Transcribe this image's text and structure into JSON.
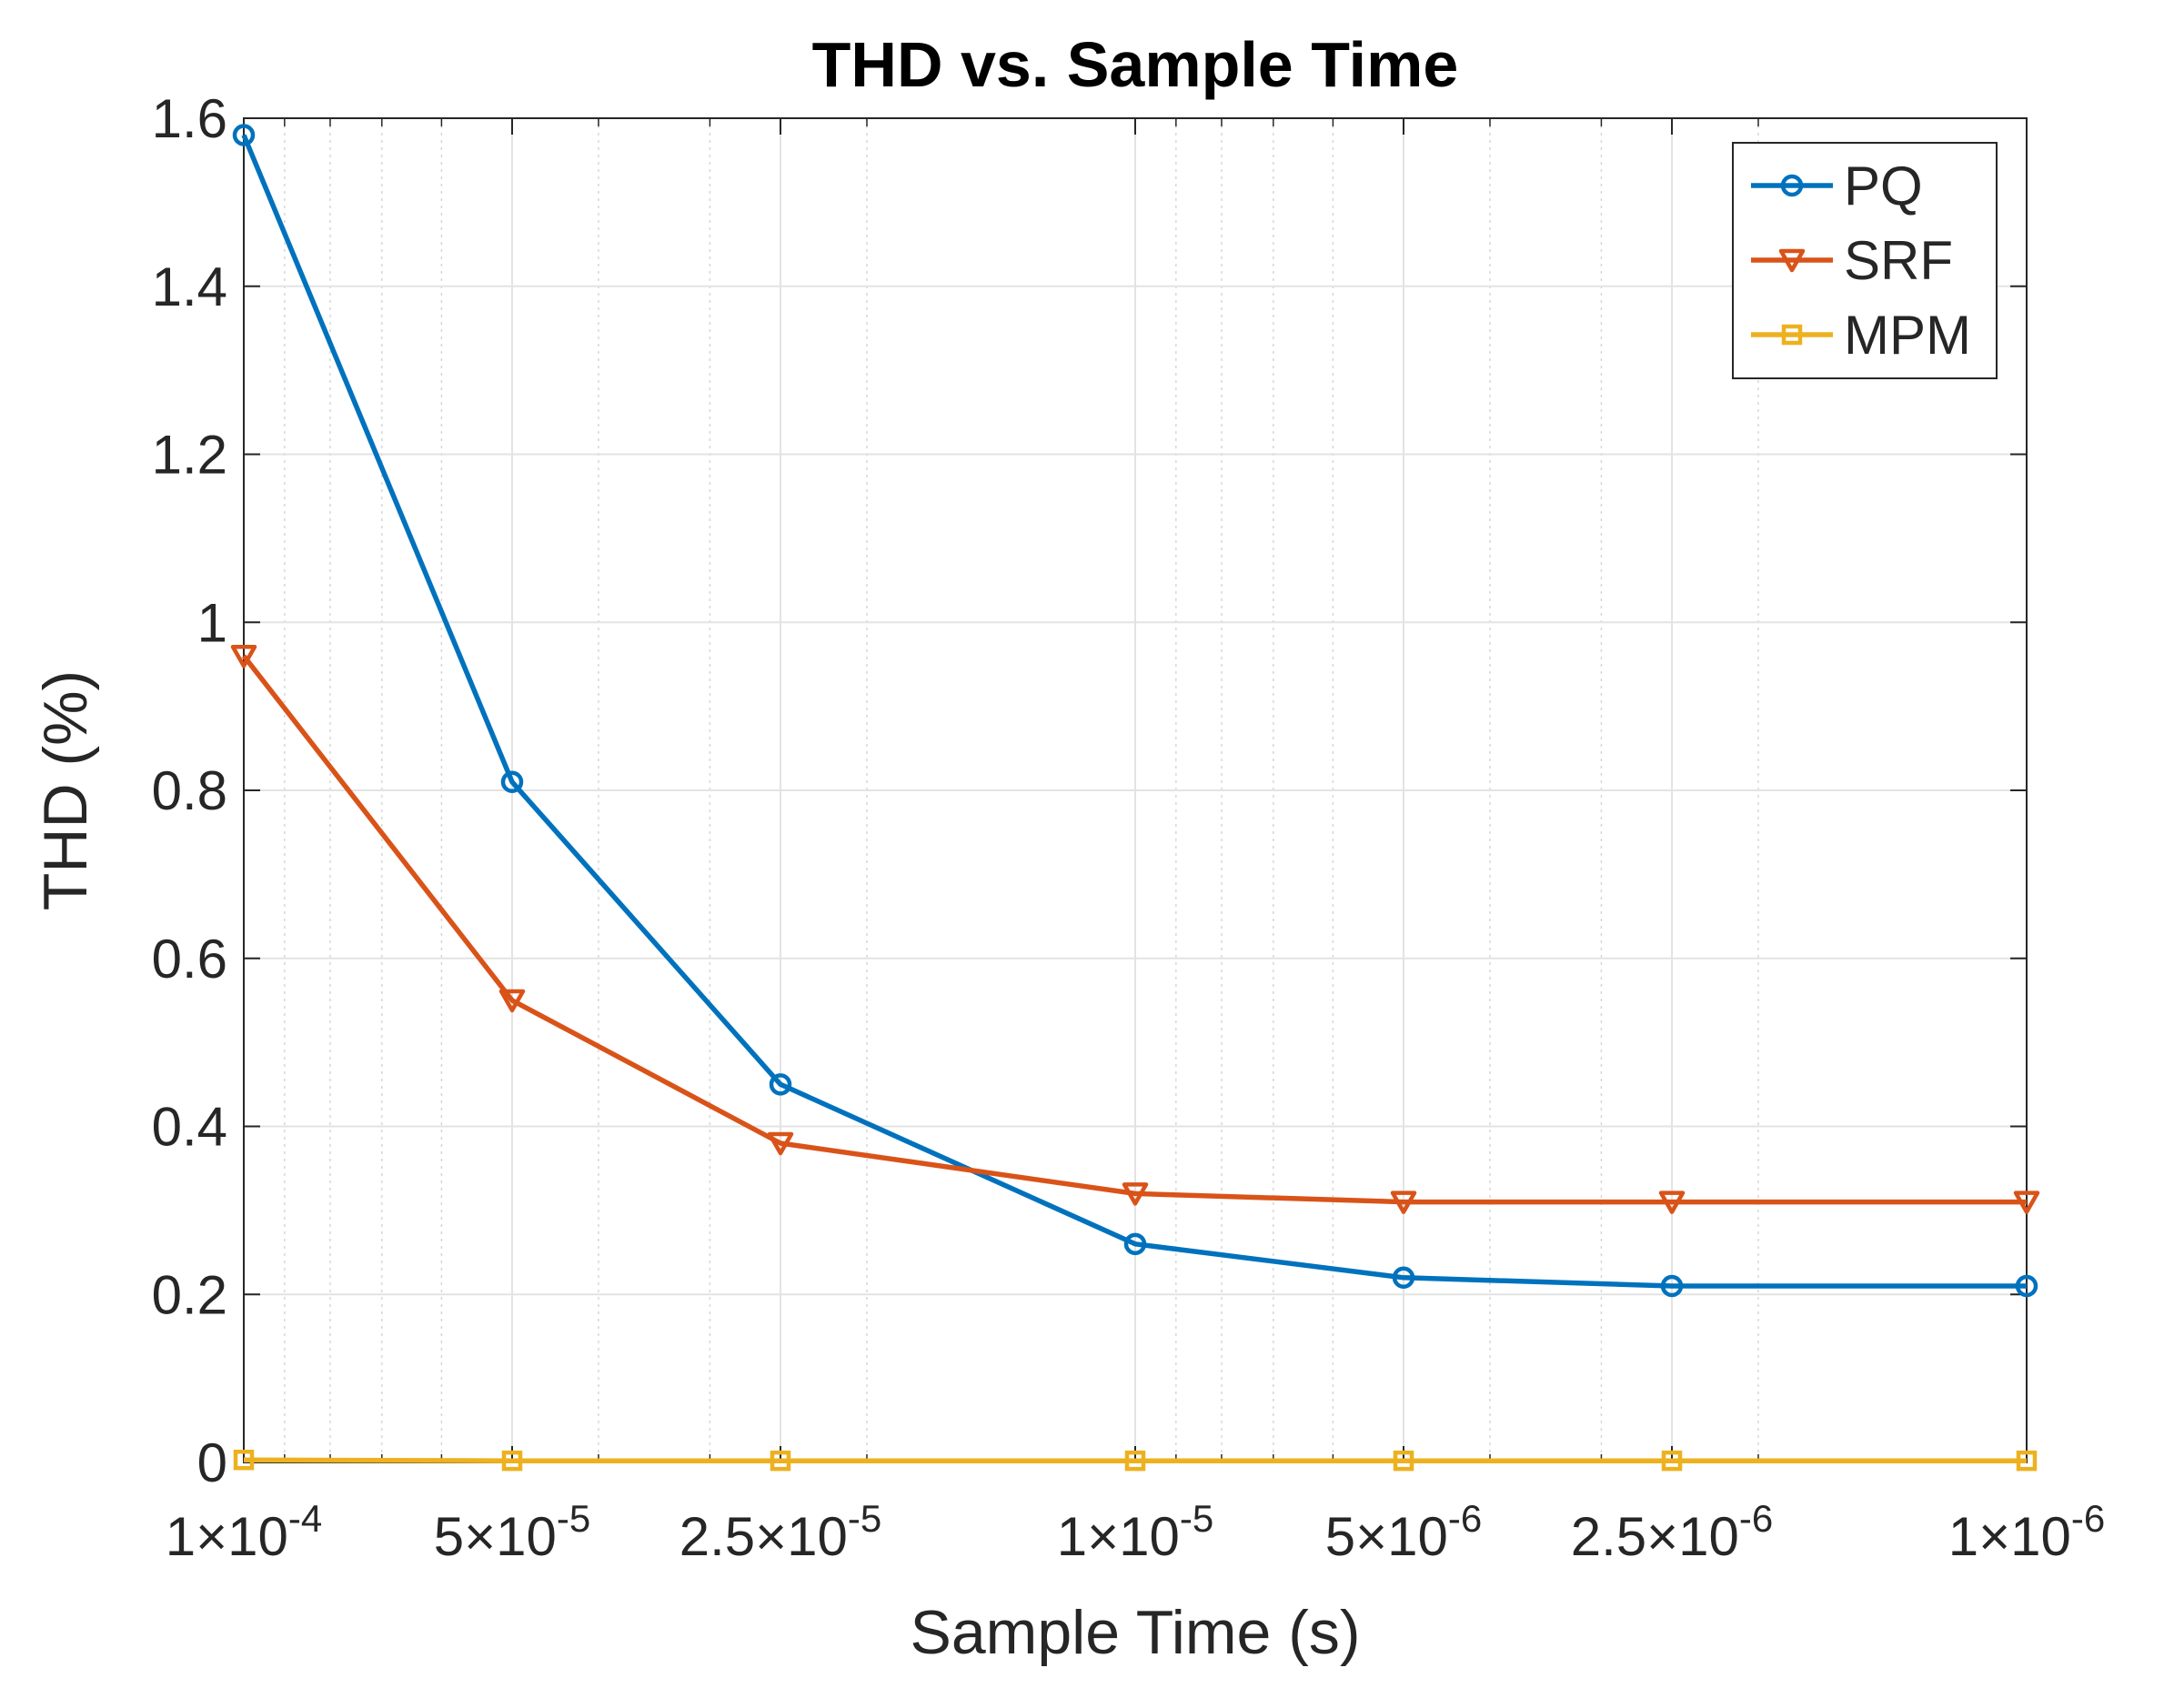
{
  "chart_data": {
    "type": "line",
    "title": "THD vs. Sample Time",
    "xlabel": "Sample Time (s)",
    "ylabel": "THD (%)",
    "xscale": "log",
    "xdirection": "reversed",
    "x": [
      0.0001,
      5e-05,
      2.5e-05,
      1e-05,
      5e-06,
      2.5e-06,
      1e-06
    ],
    "xtick_labels": [
      {
        "mant": "1",
        "exp": "-4"
      },
      {
        "mant": "5",
        "exp": "-5"
      },
      {
        "mant": "2.5",
        "exp": "-5"
      },
      {
        "mant": "1",
        "exp": "-5"
      },
      {
        "mant": "5",
        "exp": "-6"
      },
      {
        "mant": "2.5",
        "exp": "-6"
      },
      {
        "mant": "1",
        "exp": "-6"
      }
    ],
    "ylim": [
      0,
      1.6
    ],
    "yticks": [
      0,
      0.2,
      0.4,
      0.6,
      0.8,
      1,
      1.2,
      1.4,
      1.6
    ],
    "ytick_labels": [
      "0",
      "0.2",
      "0.4",
      "0.6",
      "0.8",
      "1",
      "1.2",
      "1.4",
      "1.6"
    ],
    "grid": true,
    "legend_position": "top-right",
    "series": [
      {
        "name": "PQ",
        "color": "#0072BD",
        "marker": "circle",
        "values": [
          1.58,
          0.81,
          0.45,
          0.26,
          0.22,
          0.21,
          0.21
        ]
      },
      {
        "name": "SRF",
        "color": "#D95319",
        "marker": "triangle-down",
        "values": [
          0.96,
          0.55,
          0.38,
          0.32,
          0.31,
          0.31,
          0.31
        ]
      },
      {
        "name": "MPM",
        "color": "#EDB120",
        "marker": "square",
        "values": [
          0.003,
          0.002,
          0.002,
          0.002,
          0.002,
          0.002,
          0.002
        ]
      }
    ]
  }
}
